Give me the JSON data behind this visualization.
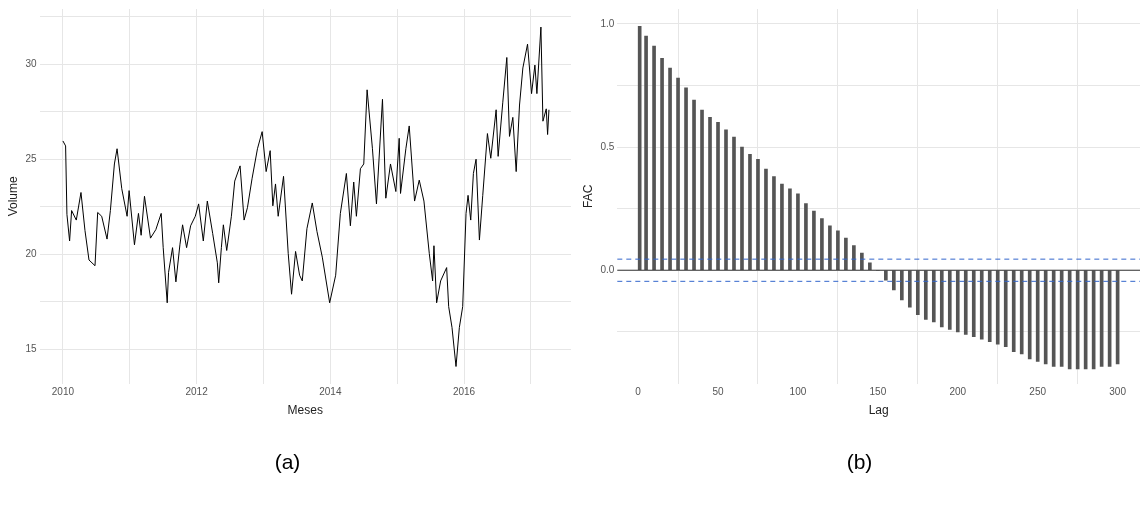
{
  "chart_data": [
    {
      "type": "line",
      "xlabel": "Meses",
      "ylabel": "Volume",
      "annotations": [
        "(a)"
      ],
      "grid": true,
      "marker": "none",
      "line_style": "solid",
      "legend": false,
      "xlim": [
        2009.65,
        2017.6
      ],
      "ylim": [
        13.2,
        32.9
      ],
      "xticks": [
        2010,
        {
          "value": 2011,
          "label": null
        },
        2012,
        {
          "value": 2013,
          "label": null
        },
        2014,
        {
          "value": 2015,
          "label": null
        },
        2016,
        {
          "value": 2017,
          "label": null
        }
      ],
      "yticks": [
        15,
        {
          "value": 17.5,
          "label": null
        },
        20,
        {
          "value": 22.5,
          "label": null
        },
        25,
        {
          "value": 27.5,
          "label": null
        },
        30,
        {
          "value": 32.5,
          "label": null
        }
      ],
      "series": [
        {
          "color": "#000000",
          "x": [
            2010.0,
            2010.04,
            2010.06,
            2010.1,
            2010.13,
            2010.2,
            2010.27,
            2010.33,
            2010.39,
            2010.48,
            2010.52,
            2010.58,
            2010.66,
            2010.71,
            2010.77,
            2010.81,
            2010.88,
            2010.96,
            2010.99,
            2011.07,
            2011.13,
            2011.17,
            2011.22,
            2011.31,
            2011.39,
            2011.47,
            2011.5,
            2011.56,
            2011.58,
            2011.64,
            2011.69,
            2011.75,
            2011.79,
            2011.85,
            2011.91,
            2011.98,
            2012.03,
            2012.1,
            2012.16,
            2012.24,
            2012.31,
            2012.33,
            2012.37,
            2012.4,
            2012.45,
            2012.52,
            2012.57,
            2012.65,
            2012.71,
            2012.76,
            2012.83,
            2012.91,
            2012.98,
            2013.04,
            2013.1,
            2013.14,
            2013.18,
            2013.22,
            2013.3,
            2013.37,
            2013.42,
            2013.48,
            2013.54,
            2013.58,
            2013.65,
            2013.73,
            2013.8,
            2013.88,
            2013.99,
            2014.08,
            2014.15,
            2014.24,
            2014.3,
            2014.35,
            2014.39,
            2014.45,
            2014.5,
            2014.55,
            2014.63,
            2014.69,
            2014.78,
            2014.83,
            2014.9,
            2014.98,
            2015.03,
            2015.05,
            2015.13,
            2015.18,
            2015.26,
            2015.33,
            2015.4,
            2015.48,
            2015.53,
            2015.55,
            2015.59,
            2015.65,
            2015.74,
            2015.77,
            2015.82,
            2015.88,
            2015.93,
            2015.98,
            2016.03,
            2016.06,
            2016.1,
            2016.14,
            2016.18,
            2016.23,
            2016.28,
            2016.35,
            2016.4,
            2016.48,
            2016.51,
            2016.58,
            2016.64,
            2016.68,
            2016.73,
            2016.78,
            2016.83,
            2016.88,
            2016.95,
            2017.01,
            2017.06,
            2017.09,
            2017.15,
            2017.18,
            2017.23,
            2017.25,
            2017.27
          ],
          "values": [
            25.96,
            25.7,
            22.1,
            20.7,
            22.3,
            21.8,
            23.25,
            21.25,
            19.7,
            19.4,
            22.2,
            22.0,
            20.8,
            22.3,
            24.75,
            25.55,
            23.45,
            22.0,
            23.35,
            20.5,
            22.15,
            21.0,
            23.05,
            20.85,
            21.3,
            22.15,
            20.35,
            17.45,
            19.05,
            20.35,
            18.55,
            20.5,
            21.55,
            20.35,
            21.5,
            22.0,
            22.65,
            20.7,
            22.8,
            21.1,
            19.55,
            18.5,
            20.35,
            21.55,
            20.2,
            22.0,
            23.85,
            24.65,
            21.8,
            22.45,
            24.0,
            25.55,
            26.45,
            24.35,
            25.45,
            22.55,
            23.7,
            22.0,
            24.1,
            20.05,
            17.9,
            20.15,
            18.9,
            18.6,
            21.35,
            22.7,
            21.2,
            19.85,
            17.45,
            18.9,
            22.15,
            24.25,
            21.5,
            23.8,
            22.0,
            24.5,
            24.75,
            28.65,
            25.55,
            22.65,
            28.15,
            22.95,
            24.75,
            23.3,
            26.1,
            23.2,
            25.55,
            26.75,
            22.8,
            23.9,
            22.8,
            20.05,
            18.6,
            20.45,
            17.45,
            18.6,
            19.3,
            17.25,
            16.15,
            14.1,
            16.15,
            17.25,
            22.15,
            23.1,
            21.8,
            24.25,
            25.0,
            20.75,
            23.1,
            26.35,
            25.05,
            27.6,
            25.15,
            28.0,
            30.35,
            26.2,
            27.2,
            24.35,
            27.85,
            29.8,
            31.05,
            28.45,
            29.95,
            28.45,
            31.95,
            27.0,
            27.65,
            26.3,
            27.6
          ]
        }
      ]
    },
    {
      "type": "bar",
      "xlabel": "Lag",
      "ylabel": "FAC",
      "annotations": [
        "(b)"
      ],
      "grid": true,
      "legend": false,
      "xlim": [
        -13,
        314
      ],
      "ylim": [
        -0.46,
        1.06
      ],
      "xticks": [
        0,
        50,
        100,
        150,
        200,
        250,
        300
      ],
      "yticks": [
        {
          "value": -0.25,
          "label": null
        },
        {
          "value": 0,
          "label": "0.0"
        },
        {
          "value": 0.25,
          "label": null
        },
        {
          "value": 0.5,
          "label": "0.5"
        },
        {
          "value": 0.75,
          "label": null
        },
        {
          "value": 1,
          "label": "1.0"
        }
      ],
      "ref_lines": [
        {
          "axis": "y",
          "value": 0,
          "label": null,
          "color": "#333333",
          "line_style": "solid"
        },
        {
          "axis": "y",
          "value": 0.045,
          "label": null,
          "color": "#3366cc",
          "line_style": "dashed"
        },
        {
          "axis": "y",
          "value": -0.045,
          "label": null,
          "color": "#3366cc",
          "line_style": "dashed"
        }
      ],
      "series": [
        {
          "color": "#555555",
          "x": [
            1,
            5,
            10,
            15,
            20,
            25,
            30,
            35,
            40,
            45,
            50,
            55,
            60,
            65,
            70,
            75,
            80,
            85,
            90,
            95,
            100,
            105,
            110,
            115,
            120,
            125,
            130,
            135,
            140,
            145,
            150,
            155,
            160,
            165,
            170,
            175,
            180,
            185,
            190,
            195,
            200,
            205,
            210,
            215,
            220,
            225,
            230,
            235,
            240,
            245,
            250,
            255,
            260,
            265,
            270,
            275,
            280,
            285,
            290,
            295,
            300
          ],
          "values": [
            0.99,
            0.95,
            0.91,
            0.86,
            0.82,
            0.78,
            0.74,
            0.69,
            0.65,
            0.62,
            0.6,
            0.57,
            0.54,
            0.5,
            0.47,
            0.45,
            0.41,
            0.38,
            0.35,
            0.33,
            0.31,
            0.27,
            0.24,
            0.21,
            0.18,
            0.16,
            0.13,
            0.1,
            0.07,
            0.03,
            0.0,
            -0.04,
            -0.08,
            -0.12,
            -0.15,
            -0.18,
            -0.2,
            -0.21,
            -0.23,
            -0.24,
            -0.25,
            -0.26,
            -0.27,
            -0.28,
            -0.29,
            -0.3,
            -0.31,
            -0.33,
            -0.34,
            -0.36,
            -0.37,
            -0.38,
            -0.39,
            -0.39,
            -0.4,
            -0.4,
            -0.4,
            -0.4,
            -0.39,
            -0.39,
            -0.38
          ]
        }
      ]
    }
  ]
}
